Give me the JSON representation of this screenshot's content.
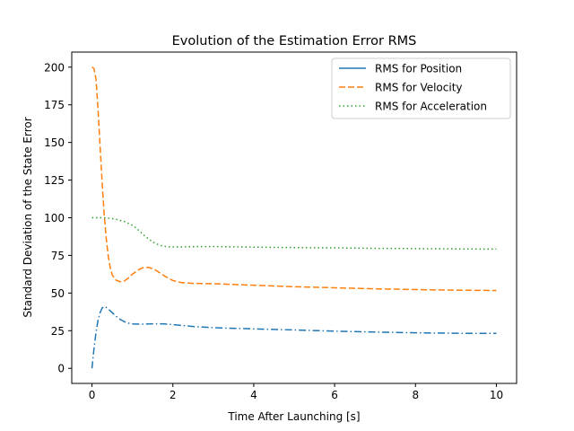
{
  "chart_data": {
    "type": "line",
    "title": "Evolution of the Estimation Error RMS",
    "xlabel": "Time After Launching [s]",
    "ylabel": "Standard Deviation of the State Error",
    "xlim": [
      -0.5,
      10.5
    ],
    "ylim": [
      -10,
      210
    ],
    "xticks": [
      0,
      2,
      4,
      6,
      8,
      10
    ],
    "yticks": [
      0,
      25,
      50,
      75,
      100,
      125,
      150,
      175,
      200
    ],
    "xtick_labels": [
      "0",
      "2",
      "4",
      "6",
      "8",
      "10"
    ],
    "ytick_labels": [
      "0",
      "25",
      "50",
      "75",
      "100",
      "125",
      "150",
      "175",
      "200"
    ],
    "grid": false,
    "legend_position": "top-right",
    "series": [
      {
        "name": "RMS for Position",
        "color": "#1f77b4",
        "legend_style": "solid",
        "plot_style": "dashdot",
        "x": [
          0,
          0.05,
          0.1,
          0.15,
          0.2,
          0.25,
          0.3,
          0.35,
          0.4,
          0.5,
          0.6,
          0.7,
          0.8,
          0.9,
          1.0,
          1.2,
          1.4,
          1.6,
          1.8,
          2.0,
          2.5,
          3.0,
          4.0,
          5.0,
          6.0,
          7.0,
          8.0,
          9.0,
          10.0
        ],
        "y": [
          0,
          13,
          24,
          32,
          37,
          40,
          41,
          40.5,
          39.5,
          37,
          34.5,
          32.5,
          31,
          30,
          29.5,
          29.3,
          29.5,
          29.6,
          29.5,
          29,
          27.8,
          27,
          26.2,
          25.5,
          24.7,
          24.1,
          23.6,
          23.3,
          23.2
        ]
      },
      {
        "name": "RMS for Velocity",
        "color": "#ff7f0e",
        "legend_style": "dashed",
        "plot_style": "dashed",
        "x": [
          0,
          0.05,
          0.1,
          0.15,
          0.2,
          0.25,
          0.3,
          0.35,
          0.4,
          0.45,
          0.5,
          0.6,
          0.7,
          0.8,
          0.9,
          1.0,
          1.1,
          1.2,
          1.3,
          1.4,
          1.5,
          1.6,
          1.7,
          1.8,
          2.0,
          2.2,
          2.5,
          3.0,
          4.0,
          5.0,
          6.0,
          7.0,
          8.0,
          9.0,
          10.0
        ],
        "y": [
          200,
          199,
          192,
          172,
          148,
          124,
          103,
          87,
          75,
          67,
          62,
          58.5,
          57.5,
          58,
          60,
          62.5,
          64.5,
          66.2,
          67,
          67,
          66.2,
          64.8,
          63,
          61.2,
          58.3,
          57,
          56.4,
          56.2,
          55.2,
          54.2,
          53.5,
          52.8,
          52.3,
          51.9,
          51.7
        ]
      },
      {
        "name": "RMS for Acceleration",
        "color": "#2ca02c",
        "legend_style": "dotted",
        "plot_style": "dotted",
        "x": [
          0,
          0.2,
          0.4,
          0.6,
          0.8,
          1.0,
          1.1,
          1.2,
          1.3,
          1.4,
          1.5,
          1.6,
          1.7,
          1.8,
          1.9,
          2.0,
          2.2,
          2.5,
          3.0,
          4.0,
          5.0,
          6.0,
          7.0,
          8.0,
          9.0,
          10.0
        ],
        "y": [
          100,
          100,
          99.8,
          99,
          97.5,
          95,
          93,
          90.5,
          88,
          86,
          84,
          82.6,
          81.6,
          81,
          80.7,
          80.6,
          80.6,
          80.8,
          80.9,
          80.5,
          80.2,
          80,
          79.7,
          79.5,
          79.3,
          79.2
        ]
      }
    ]
  }
}
